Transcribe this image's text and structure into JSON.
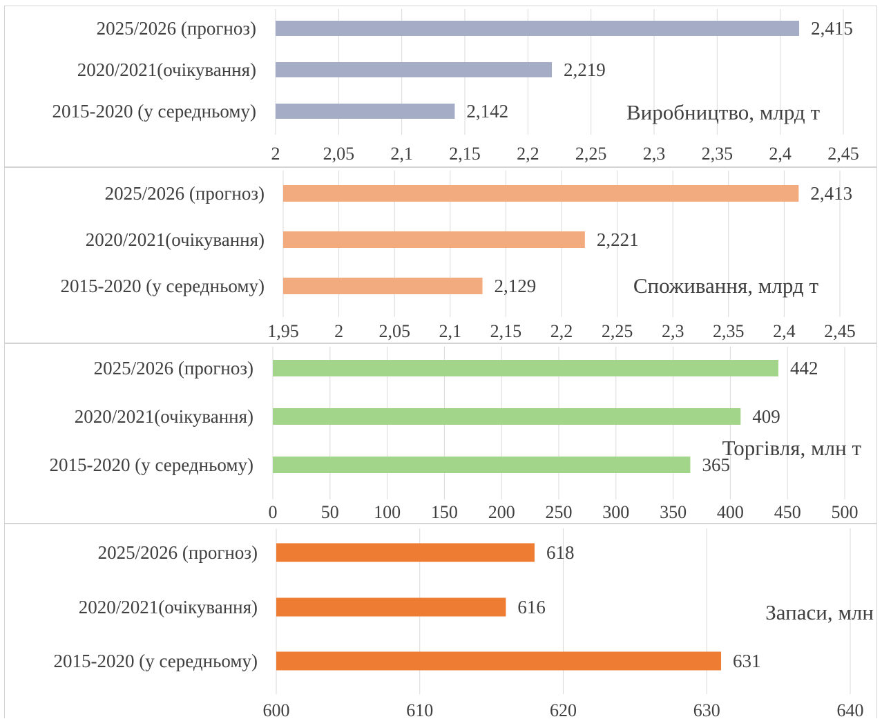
{
  "chart_data": [
    {
      "type": "bar",
      "title": "Виробництво, млрд т",
      "categories": [
        "2025/2026 (прогноз)",
        "2020/2021(очікування)",
        "2015-2020 (у середньому)"
      ],
      "values": [
        2.415,
        2.219,
        2.142
      ],
      "value_labels": [
        "2,415",
        "2,219",
        "2,142"
      ],
      "xlim": [
        2,
        2.45
      ],
      "ticks": [
        2,
        2.05,
        2.1,
        2.15,
        2.2,
        2.25,
        2.3,
        2.35,
        2.4,
        2.45
      ],
      "tick_labels": [
        "2",
        "2,05",
        "2,1",
        "2,15",
        "2,2",
        "2,25",
        "2,3",
        "2,35",
        "2,4",
        "2,45"
      ],
      "color": "#a5acc6",
      "grid": true
    },
    {
      "type": "bar",
      "title": "Споживання, млрд т",
      "categories": [
        "2025/2026 (прогноз)",
        "2020/2021(очікування)",
        "2015-2020 (у середньому)"
      ],
      "values": [
        2.413,
        2.221,
        2.129
      ],
      "value_labels": [
        "2,413",
        "2,221",
        "2,129"
      ],
      "xlim": [
        1.95,
        2.45
      ],
      "ticks": [
        1.95,
        2,
        2.05,
        2.1,
        2.15,
        2.2,
        2.25,
        2.3,
        2.35,
        2.4,
        2.45
      ],
      "tick_labels": [
        "1,95",
        "2",
        "2,05",
        "2,1",
        "2,15",
        "2,2",
        "2,25",
        "2,3",
        "2,35",
        "2,4",
        "2,45"
      ],
      "color": "#f2ab7f",
      "grid": true
    },
    {
      "type": "bar",
      "title": "Торгівля, млн т",
      "categories": [
        "2025/2026 (прогноз)",
        "2020/2021(очікування)",
        "2015-2020 (у середньому)"
      ],
      "values": [
        442,
        409,
        365
      ],
      "value_labels": [
        "442",
        "409",
        "365"
      ],
      "xlim": [
        0,
        500
      ],
      "ticks": [
        0,
        50,
        100,
        150,
        200,
        250,
        300,
        350,
        400,
        450,
        500
      ],
      "tick_labels": [
        "0",
        "50",
        "100",
        "150",
        "200",
        "250",
        "300",
        "350",
        "400",
        "450",
        "500"
      ],
      "color": "#a2d48a",
      "grid": true
    },
    {
      "type": "bar",
      "title": "Запаси, млн",
      "categories": [
        "2025/2026 (прогноз)",
        "2020/2021(очікування)",
        "2015-2020 (у середньому)"
      ],
      "values": [
        618,
        616,
        631
      ],
      "value_labels": [
        "618",
        "616",
        "631"
      ],
      "xlim": [
        600,
        640
      ],
      "ticks": [
        600,
        610,
        620,
        630,
        640
      ],
      "tick_labels": [
        "600",
        "610",
        "620",
        "630",
        "640"
      ],
      "color": "#ee7d33",
      "grid": true
    }
  ]
}
